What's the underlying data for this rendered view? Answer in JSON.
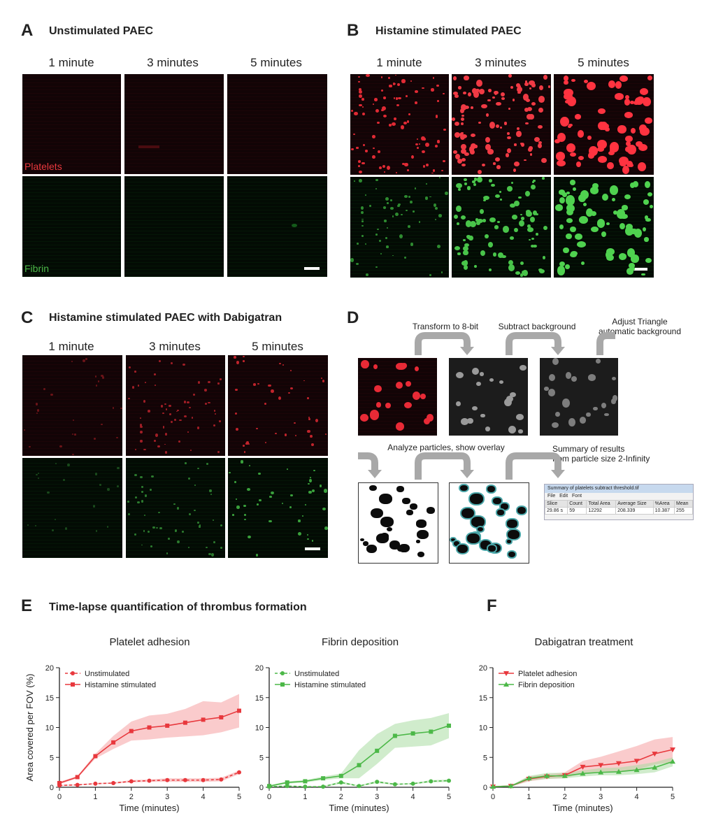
{
  "panels": {
    "A": {
      "label": "A",
      "title": "Unstimulated PAEC",
      "cols": [
        "1 minute",
        "3 minutes",
        "5 minutes"
      ],
      "row1": "Platelets",
      "row2": "Fibrin"
    },
    "B": {
      "label": "B",
      "title": "Histamine stimulated PAEC",
      "cols": [
        "1 minute",
        "3 minutes",
        "5 minutes"
      ]
    },
    "C": {
      "label": "C",
      "title": "Histamine stimulated PAEC with Dabigatran",
      "cols": [
        "1 minute",
        "3 minutes",
        "5 minutes"
      ]
    },
    "D": {
      "label": "D",
      "steps": [
        "Transform to 8-bit",
        "Subtract background",
        "Adjust Triangle\nautomatic background",
        "Analyze particles, show overlay",
        "Summary of results\nfrom particle size 2-Infinity"
      ],
      "summary": {
        "title": "Summary of platelets subtract threshold.tif",
        "menu": [
          "File",
          "Edit",
          "Font"
        ],
        "headers": [
          "Slice",
          "Count",
          "Total Area",
          "Average Size",
          "%Area",
          "Mean"
        ],
        "row": [
          "29.86 s",
          "59",
          "12292",
          "208.339",
          "10.387",
          "255"
        ]
      }
    },
    "E": {
      "label": "E",
      "title": "Time-lapse quantification of thrombus formation"
    },
    "F": {
      "label": "F"
    }
  },
  "colors": {
    "red": "#e8383d",
    "green": "#4cb848",
    "redfill": "#f5a0a3",
    "greenfill": "#a9dca3"
  },
  "chart_data": [
    {
      "type": "line",
      "title": "Platelet adhesion",
      "xlabel": "Time (minutes)",
      "ylabel": "Area covered per FOV (%)",
      "xlim": [
        0,
        5
      ],
      "ylim": [
        0,
        20
      ],
      "xticks": [
        0,
        1,
        2,
        3,
        4,
        5
      ],
      "yticks": [
        0,
        5,
        10,
        15,
        20
      ],
      "legend": "top-left",
      "x": [
        0,
        0.5,
        1,
        1.5,
        2,
        2.5,
        3,
        3.5,
        4,
        4.5,
        5
      ],
      "series": [
        {
          "name": "Unstimulated",
          "color": "#e8383d",
          "dashed": true,
          "marker": "circle",
          "values": [
            0.3,
            0.4,
            0.6,
            0.7,
            1.0,
            1.1,
            1.2,
            1.2,
            1.2,
            1.3,
            2.5
          ],
          "lower": [
            0.2,
            0.3,
            0.5,
            0.6,
            0.8,
            0.9,
            0.9,
            0.9,
            0.9,
            1.0,
            2.2
          ],
          "upper": [
            0.4,
            0.5,
            0.7,
            0.8,
            1.2,
            1.3,
            1.5,
            1.5,
            1.5,
            1.6,
            2.8
          ]
        },
        {
          "name": "Histamine stimulated",
          "color": "#e8383d",
          "dashed": false,
          "marker": "square",
          "values": [
            0.7,
            1.7,
            5.2,
            7.5,
            9.4,
            10.0,
            10.3,
            10.8,
            11.3,
            11.7,
            12.8
          ],
          "lower": [
            0.5,
            1.5,
            4.8,
            6.4,
            7.8,
            8.0,
            8.3,
            8.5,
            8.7,
            9.2,
            10.0
          ],
          "upper": [
            0.9,
            1.9,
            5.6,
            8.6,
            11.0,
            12.0,
            12.3,
            13.1,
            14.4,
            14.2,
            15.6
          ]
        }
      ]
    },
    {
      "type": "line",
      "title": "Fibrin deposition",
      "xlabel": "Time (minutes)",
      "ylabel": "",
      "xlim": [
        0,
        5
      ],
      "ylim": [
        0,
        20
      ],
      "xticks": [
        0,
        1,
        2,
        3,
        4,
        5
      ],
      "yticks": [
        0,
        5,
        10,
        15,
        20
      ],
      "legend": "top-left",
      "x": [
        0,
        0.5,
        1,
        1.5,
        2,
        2.5,
        3,
        3.5,
        4,
        4.5,
        5
      ],
      "series": [
        {
          "name": "Unstimulated",
          "color": "#4cb848",
          "dashed": true,
          "marker": "circle",
          "values": [
            0.1,
            0.2,
            0.1,
            0.1,
            0.8,
            0.2,
            0.9,
            0.5,
            0.6,
            1.0,
            1.1
          ],
          "lower": [
            0.0,
            0.1,
            0.0,
            0.0,
            0.6,
            0.1,
            0.7,
            0.4,
            0.5,
            0.8,
            0.9
          ],
          "upper": [
            0.2,
            0.3,
            0.2,
            0.2,
            1.0,
            0.3,
            1.1,
            0.6,
            0.7,
            1.2,
            1.3
          ]
        },
        {
          "name": "Histamine stimulated",
          "color": "#4cb848",
          "dashed": false,
          "marker": "square",
          "values": [
            0.2,
            0.8,
            1.0,
            1.5,
            1.9,
            3.7,
            6.1,
            8.6,
            9.0,
            9.3,
            10.3
          ],
          "lower": [
            0.1,
            0.6,
            0.8,
            1.2,
            1.5,
            1.5,
            3.9,
            6.6,
            6.8,
            7.0,
            8.2
          ],
          "upper": [
            0.3,
            1.0,
            1.2,
            1.8,
            2.3,
            6.2,
            8.9,
            10.6,
            11.2,
            11.6,
            12.4
          ]
        }
      ]
    },
    {
      "type": "line",
      "title": "Dabigatran treatment",
      "xlabel": "Time (minutes)",
      "ylabel": "",
      "xlim": [
        0,
        5
      ],
      "ylim": [
        0,
        20
      ],
      "xticks": [
        0,
        1,
        2,
        3,
        4,
        5
      ],
      "yticks": [
        0,
        5,
        10,
        15,
        20
      ],
      "legend": "top-left",
      "x": [
        0,
        0.5,
        1,
        1.5,
        2,
        2.5,
        3,
        3.5,
        4,
        4.5,
        5
      ],
      "series": [
        {
          "name": "Platelet adhesion",
          "color": "#e8383d",
          "dashed": false,
          "marker": "triangle-down",
          "values": [
            0.1,
            0.2,
            1.4,
            1.8,
            2.0,
            3.4,
            3.7,
            4.0,
            4.4,
            5.6,
            6.3
          ],
          "lower": [
            0.0,
            0.1,
            1.0,
            1.4,
            1.5,
            2.4,
            2.6,
            2.7,
            2.9,
            3.8,
            4.2
          ],
          "upper": [
            0.2,
            0.3,
            1.8,
            2.2,
            2.5,
            4.4,
            5.1,
            6.0,
            6.9,
            8.0,
            8.4
          ]
        },
        {
          "name": "Fibrin deposition",
          "color": "#4cb848",
          "dashed": false,
          "marker": "triangle",
          "values": [
            0.1,
            0.2,
            1.5,
            1.9,
            1.9,
            2.3,
            2.5,
            2.6,
            2.9,
            3.3,
            4.3
          ],
          "lower": [
            0.0,
            0.1,
            1.1,
            1.4,
            1.5,
            1.8,
            2.0,
            2.0,
            2.2,
            2.5,
            3.5
          ],
          "upper": [
            0.2,
            0.3,
            1.9,
            2.4,
            2.4,
            2.8,
            3.2,
            3.3,
            3.7,
            4.2,
            5.0
          ]
        }
      ]
    }
  ]
}
